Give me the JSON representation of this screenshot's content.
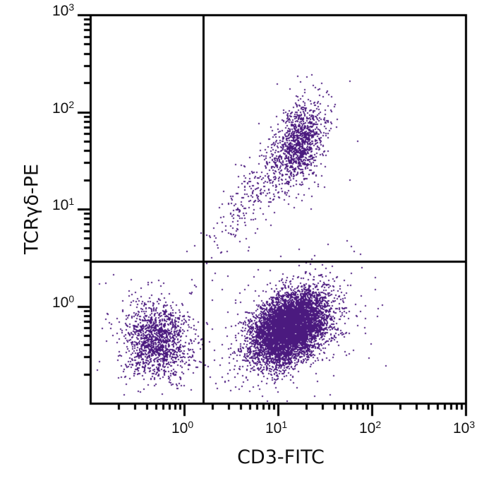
{
  "chart_data": {
    "type": "scatter",
    "subtype": "flow-cytometry-dot-plot",
    "xlabel": "CD3-FITC",
    "ylabel": "TCRγδ-PE",
    "xscale": "log",
    "yscale": "log",
    "xlim": [
      0.1,
      1000
    ],
    "ylim": [
      0.1,
      1000
    ],
    "x_ticks": [
      {
        "base": "10",
        "exp": "0",
        "value": 1
      },
      {
        "base": "10",
        "exp": "1",
        "value": 10
      },
      {
        "base": "10",
        "exp": "2",
        "value": 100
      },
      {
        "base": "10",
        "exp": "3",
        "value": 1000
      }
    ],
    "y_ticks": [
      {
        "base": "10",
        "exp": "0",
        "value": 1
      },
      {
        "base": "10",
        "exp": "1",
        "value": 10
      },
      {
        "base": "10",
        "exp": "2",
        "value": 100
      },
      {
        "base": "10",
        "exp": "3",
        "value": 1000
      }
    ],
    "gates": {
      "vertical_x": 1.6,
      "horizontal_y": 2.9
    },
    "grid": false,
    "legend": null,
    "dot_color": "#4b1a7f",
    "populations": [
      {
        "name": "CD3- TCRγδ- (lower-left)",
        "center_x": 0.5,
        "center_y": 0.45,
        "spread_log_x": 0.17,
        "spread_log_y": 0.2,
        "count": 1400,
        "quadrant": "LL"
      },
      {
        "name": "CD3+ TCRγδ- (lower-right)",
        "center_x": 13,
        "center_y": 0.6,
        "spread_log_x": 0.2,
        "spread_log_y": 0.2,
        "count": 6500,
        "quadrant": "LR"
      },
      {
        "name": "CD3+ TCRγδ+ (upper-right)",
        "center_x": 17,
        "center_y": 50,
        "spread_log_x": 0.13,
        "spread_log_y": 0.2,
        "count": 1100,
        "quadrant": "UR"
      },
      {
        "name": "transition streak",
        "from_x": 2,
        "from_y": 4,
        "to_x": 12,
        "to_y": 40,
        "count": 300,
        "quadrant": "UR"
      }
    ]
  },
  "axes": {
    "x_title": "CD3-FITC",
    "y_title": "TCRγδ-PE"
  }
}
